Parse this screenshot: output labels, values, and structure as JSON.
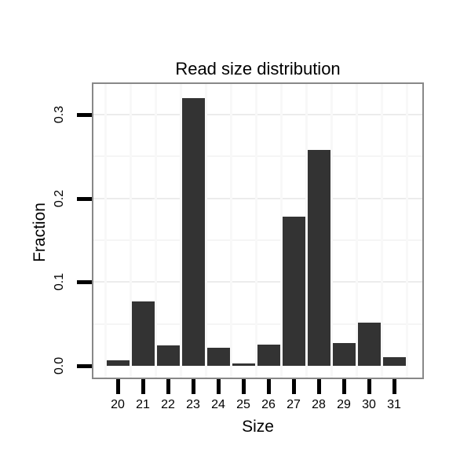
{
  "chart_data": {
    "type": "bar",
    "title": "Read size distribution",
    "xlabel": "Size",
    "ylabel": "Fraction",
    "categories": [
      "20",
      "21",
      "22",
      "23",
      "24",
      "25",
      "26",
      "27",
      "28",
      "29",
      "30",
      "31"
    ],
    "values": [
      0.007,
      0.077,
      0.024,
      0.32,
      0.022,
      0.003,
      0.025,
      0.178,
      0.258,
      0.027,
      0.052,
      0.01
    ],
    "y_tick_labels": [
      "0.0",
      "0.1",
      "0.2",
      "0.3"
    ],
    "y_tick_values": [
      0.0,
      0.1,
      0.2,
      0.3
    ],
    "ylim": [
      -0.017,
      0.338
    ],
    "grid": "on",
    "legend": "none",
    "layout_hints": {
      "bar_gap": "narrow",
      "y_tick_label_rotation": "90deg counterclockwise",
      "panel_border": "on"
    },
    "colors": {
      "bar": "#333333",
      "panel_border": "#888888",
      "tick": "#000000",
      "grid_major": "#ececec",
      "grid_minor": "#f5f5f5",
      "background": "#ffffff",
      "text": "#000000"
    }
  }
}
